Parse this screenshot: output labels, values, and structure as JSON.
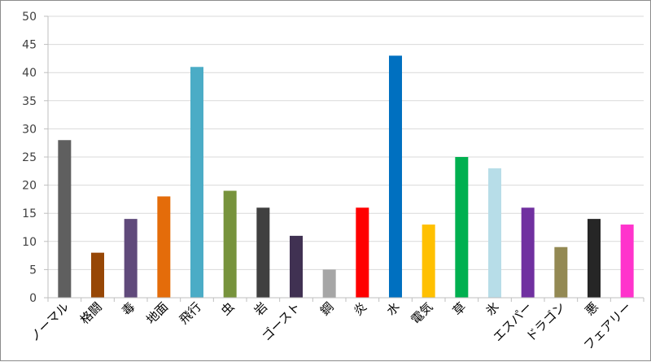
{
  "chart_data": {
    "type": "bar",
    "categories": [
      "ノーマル",
      "格闘",
      "毒",
      "地面",
      "飛行",
      "虫",
      "岩",
      "ゴースト",
      "鋼",
      "炎",
      "水",
      "電気",
      "草",
      "氷",
      "エスパー",
      "ドラゴン",
      "悪",
      "フェアリー"
    ],
    "values": [
      28,
      8,
      14,
      18,
      41,
      19,
      16,
      11,
      5,
      16,
      43,
      13,
      25,
      23,
      16,
      9,
      14,
      13
    ],
    "colors": [
      "#5f5f5f",
      "#974706",
      "#604a7b",
      "#e46c0a",
      "#4bacc6",
      "#77933c",
      "#404040",
      "#403152",
      "#a6a6a6",
      "#ff0000",
      "#0070c0",
      "#ffc000",
      "#00b050",
      "#b7dde8",
      "#7030a0",
      "#938953",
      "#262626",
      "#ff33cc"
    ],
    "title": "",
    "xlabel": "",
    "ylabel": "",
    "ylim": [
      0,
      50
    ],
    "yticks": [
      "0",
      "5",
      "10",
      "15",
      "20",
      "25",
      "30",
      "35",
      "40",
      "45",
      "50"
    ],
    "grid": true,
    "legend": "none"
  }
}
